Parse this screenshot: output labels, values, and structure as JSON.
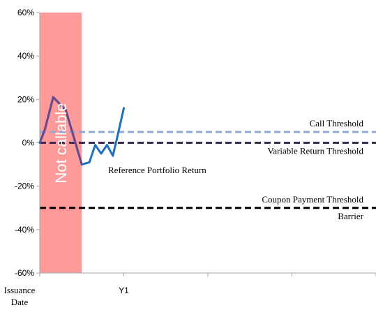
{
  "chart_data": {
    "type": "line",
    "title": "",
    "xlabel": "",
    "ylabel": "",
    "ylim": [
      -60,
      60
    ],
    "y_ticks": [
      60,
      40,
      20,
      0,
      -20,
      -40,
      -60
    ],
    "y_tick_labels": [
      "60%",
      "40%",
      "20%",
      "0%",
      "-20%",
      "-40%",
      "-60%"
    ],
    "x_range": [
      0,
      4
    ],
    "x_ticks": [
      {
        "x": 0,
        "label_lines": [
          "Issuance",
          "Date"
        ]
      },
      {
        "x": 1,
        "label_lines": [
          "Y1"
        ]
      },
      {
        "x": 2,
        "label_lines": []
      },
      {
        "x": 3,
        "label_lines": []
      },
      {
        "x": 4,
        "label_lines": []
      }
    ],
    "grid": false,
    "shaded_region": {
      "x_start": 0,
      "x_end": 0.5,
      "label": "Not callable",
      "color": "#ff9a9a"
    },
    "series": [
      {
        "name": "Reference Portfolio Return",
        "color": "#1f6fbf",
        "x": [
          0,
          0.06,
          0.16,
          0.31,
          0.5,
          0.59,
          0.66,
          0.73,
          0.8,
          0.87,
          0.93,
          1.0
        ],
        "y": [
          0,
          6,
          21,
          15,
          -10,
          -9,
          -1,
          -5,
          -1,
          -6,
          4,
          16
        ]
      }
    ],
    "threshold_lines": [
      {
        "name": "Call Threshold",
        "y": 5,
        "color": "#8fa8d8",
        "label_side": "above"
      },
      {
        "name": "Variable Return Threshold",
        "y": 0,
        "color": "#3a2a55",
        "label_side": "below"
      },
      {
        "name": "Coupon Payment Threshold",
        "y": -30,
        "color": "#000000",
        "label_side": "above"
      },
      {
        "name": "Barrier",
        "y": -30,
        "color": "#000000",
        "label_side": "below"
      }
    ],
    "colors": {
      "axis": "#a6a6a6",
      "not_callable_overlay_line": "#6a4a8a"
    }
  }
}
